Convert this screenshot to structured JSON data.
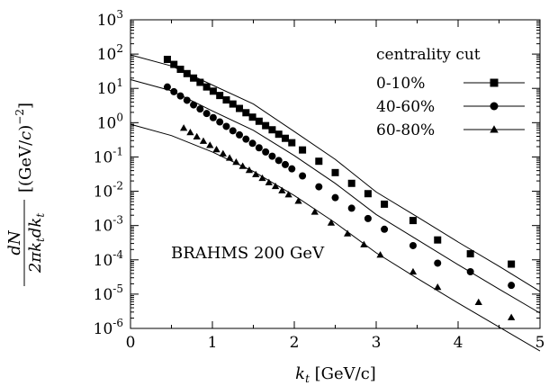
{
  "chart_data": {
    "type": "scatter",
    "x_axis": {
      "label_main": "k",
      "label_sub": "t",
      "label_unit": " [GeV/c]",
      "range": [
        0,
        5
      ],
      "ticks": [
        0,
        1,
        2,
        3,
        4,
        5
      ],
      "tick_labels": [
        "0",
        "1",
        "2",
        "3",
        "4",
        "5"
      ]
    },
    "y_axis": {
      "scale": "log",
      "range": [
        1e-06,
        1000
      ],
      "ticks": [
        1e-06,
        1e-05,
        0.0001,
        0.001,
        0.01,
        0.1,
        1,
        10,
        100,
        1000
      ],
      "tick_exponents": [
        "-6",
        "-5",
        "-4",
        "-3",
        "-2",
        "-1",
        "0",
        "1",
        "2",
        "3"
      ],
      "tick_base": "10",
      "label_numerator": "dN",
      "label_denominator": "2πk",
      "label_denominator_sub": "t",
      "label_denominator_mid": "dk",
      "label_denominator_sub2": "t",
      "label_unit_open": "[(GeV/",
      "label_unit_c": "c",
      "label_unit_close": ")",
      "label_unit_exp": "−2",
      "label_unit_end": "]"
    },
    "legend": {
      "title": "centrality cut",
      "position": "top-right"
    },
    "annotation": "BRAHMS 200 GeV",
    "series": [
      {
        "name": "0-10%",
        "marker": "square",
        "points": [
          [
            0.45,
            70
          ],
          [
            0.53,
            50
          ],
          [
            0.61,
            36
          ],
          [
            0.69,
            27
          ],
          [
            0.77,
            20
          ],
          [
            0.85,
            15
          ],
          [
            0.93,
            11
          ],
          [
            1.01,
            8.3
          ],
          [
            1.09,
            6.2
          ],
          [
            1.17,
            4.6
          ],
          [
            1.25,
            3.5
          ],
          [
            1.33,
            2.6
          ],
          [
            1.41,
            1.95
          ],
          [
            1.49,
            1.45
          ],
          [
            1.57,
            1.1
          ],
          [
            1.65,
            0.82
          ],
          [
            1.73,
            0.62
          ],
          [
            1.81,
            0.46
          ],
          [
            1.89,
            0.35
          ],
          [
            1.97,
            0.26
          ],
          [
            2.1,
            0.16
          ],
          [
            2.3,
            0.075
          ],
          [
            2.5,
            0.035
          ],
          [
            2.7,
            0.017
          ],
          [
            2.9,
            0.0085
          ],
          [
            3.1,
            0.0042
          ],
          [
            3.45,
            0.0014
          ],
          [
            3.75,
            0.00038
          ],
          [
            4.15,
            0.00015
          ],
          [
            4.65,
            7.5e-05
          ]
        ],
        "curve": [
          [
            0,
            95
          ],
          [
            0.5,
            45
          ],
          [
            1,
            12.5
          ],
          [
            1.5,
            3.5
          ],
          [
            2,
            0.55
          ],
          [
            2.5,
            0.085
          ],
          [
            3,
            0.0095
          ],
          [
            3.5,
            0.0018
          ],
          [
            4,
            0.00033
          ],
          [
            4.5,
            6.5e-05
          ],
          [
            5,
            1.2e-05
          ]
        ]
      },
      {
        "name": "40-60%",
        "marker": "circle",
        "points": [
          [
            0.45,
            11
          ],
          [
            0.53,
            8
          ],
          [
            0.61,
            6
          ],
          [
            0.69,
            4.5
          ],
          [
            0.77,
            3.3
          ],
          [
            0.85,
            2.5
          ],
          [
            0.93,
            1.85
          ],
          [
            1.01,
            1.4
          ],
          [
            1.09,
            1.05
          ],
          [
            1.17,
            0.78
          ],
          [
            1.25,
            0.58
          ],
          [
            1.33,
            0.44
          ],
          [
            1.41,
            0.33
          ],
          [
            1.49,
            0.25
          ],
          [
            1.57,
            0.185
          ],
          [
            1.65,
            0.14
          ],
          [
            1.73,
            0.105
          ],
          [
            1.81,
            0.079
          ],
          [
            1.89,
            0.06
          ],
          [
            1.97,
            0.045
          ],
          [
            2.1,
            0.028
          ],
          [
            2.3,
            0.0135
          ],
          [
            2.5,
            0.0065
          ],
          [
            2.7,
            0.0032
          ],
          [
            2.9,
            0.0016
          ],
          [
            3.1,
            0.00078
          ],
          [
            3.45,
            0.00026
          ],
          [
            3.75,
            8e-05
          ],
          [
            4.15,
            4.5e-05
          ],
          [
            4.65,
            1.8e-05
          ]
        ],
        "curve": [
          [
            0,
            18
          ],
          [
            0.5,
            8.5
          ],
          [
            1,
            2.2
          ],
          [
            1.5,
            0.6
          ],
          [
            2,
            0.11
          ],
          [
            2.5,
            0.017
          ],
          [
            3,
            0.0021
          ],
          [
            3.5,
            0.00039
          ],
          [
            4,
            7.2e-05
          ],
          [
            4.5,
            1.4e-05
          ],
          [
            5,
            2.8e-06
          ]
        ]
      },
      {
        "name": "60-80%",
        "marker": "triangle",
        "points": [
          [
            0.65,
            0.7
          ],
          [
            0.73,
            0.52
          ],
          [
            0.81,
            0.39
          ],
          [
            0.89,
            0.29
          ],
          [
            0.97,
            0.22
          ],
          [
            1.05,
            0.165
          ],
          [
            1.13,
            0.125
          ],
          [
            1.21,
            0.094
          ],
          [
            1.29,
            0.071
          ],
          [
            1.37,
            0.054
          ],
          [
            1.45,
            0.041
          ],
          [
            1.53,
            0.031
          ],
          [
            1.61,
            0.024
          ],
          [
            1.69,
            0.018
          ],
          [
            1.77,
            0.014
          ],
          [
            1.85,
            0.0105
          ],
          [
            1.93,
            0.008
          ],
          [
            2.05,
            0.0052
          ],
          [
            2.25,
            0.0025
          ],
          [
            2.45,
            0.0012
          ],
          [
            2.65,
            0.00058
          ],
          [
            2.85,
            0.00028
          ],
          [
            3.05,
            0.00014
          ],
          [
            3.45,
            4.5e-05
          ],
          [
            3.75,
            1.6e-05
          ],
          [
            4.25,
            5.8e-06
          ],
          [
            4.65,
            2.1e-06
          ]
        ],
        "curve": [
          [
            0,
            0.9
          ],
          [
            0.5,
            0.42
          ],
          [
            1,
            0.14
          ],
          [
            1.5,
            0.038
          ],
          [
            2,
            0.0075
          ],
          [
            2.5,
            0.0012
          ],
          [
            3,
            0.00016
          ],
          [
            3.5,
            2.9e-05
          ],
          [
            4,
            5.5e-06
          ],
          [
            4.5,
            1.1e-06
          ],
          [
            5,
            2.2e-07
          ]
        ]
      }
    ]
  }
}
